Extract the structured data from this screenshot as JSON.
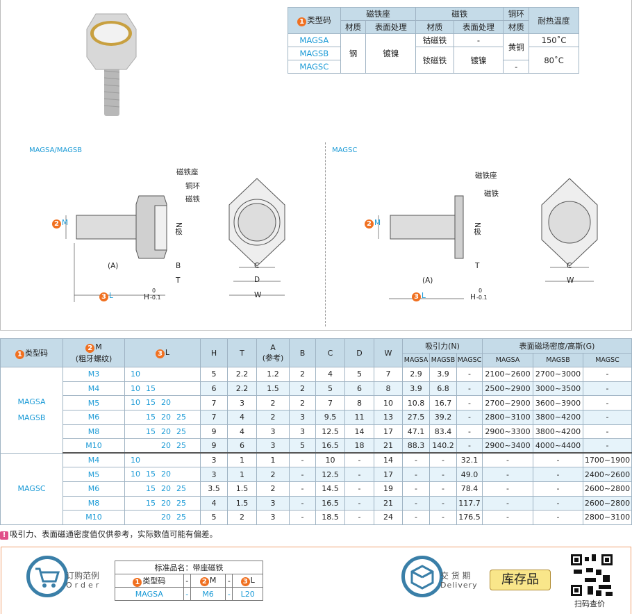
{
  "spec_table": {
    "header": {
      "type_code": "类型码",
      "type_num": "1",
      "seat": "磁铁座",
      "magnet": "磁铁",
      "ring": "铜环",
      "heat": "耐热温度",
      "material": "材质",
      "surface": "表面处理"
    },
    "rows": [
      {
        "code": "MAGSA",
        "magnet_material": "钴磁铁",
        "magnet_surface": "-",
        "heat": "150˚C"
      },
      {
        "code": "MAGSB",
        "magnet_material": "钕磁铁",
        "magnet_surface": "镀镍",
        "heat": "80˚C"
      },
      {
        "code": "MAGSC",
        "ring_material": "-"
      }
    ],
    "seat_material": "钢",
    "seat_surface": "镀镍",
    "ring_material_ab": "黄铜"
  },
  "diagram": {
    "left_title": "MAGSA/MAGSB",
    "right_title": "MAGSC",
    "labels": {
      "seat": "磁铁座",
      "ring": "铜环",
      "magnet": "磁铁",
      "pole": "N极",
      "M": "M",
      "L": "L",
      "A": "(A)",
      "B": "B",
      "T": "T",
      "H": "H",
      "tol_upper": "0",
      "tol_lower": "-0.1",
      "C": "C",
      "D": "D",
      "W": "W",
      "num2": "2",
      "num3": "3"
    }
  },
  "main_table": {
    "headers": {
      "type_code": "类型码",
      "M": "M",
      "M_sub": "(粗牙螺纹)",
      "L": "L",
      "H": "H",
      "T": "T",
      "A": "A",
      "A_sub": "(参考)",
      "B": "B",
      "C": "C",
      "D": "D",
      "W": "W",
      "force": "吸引力(N)",
      "density": "表面磁场密度/高斯(G)",
      "sub": [
        "MAGSA",
        "MAGSB",
        "MAGSC",
        "MAGSA",
        "MAGSB",
        "MAGSC"
      ]
    },
    "groups": [
      {
        "types": [
          "MAGSA",
          "MAGSB"
        ],
        "rows": [
          {
            "M": "M3",
            "L": [
              "10"
            ],
            "H": "5",
            "T": "2.2",
            "A": "1.2",
            "B": "2",
            "C": "4",
            "D": "5",
            "W": "7",
            "fA": "2.9",
            "fB": "3.9",
            "fC": "-",
            "gA": "2100~2600",
            "gB": "2700~3000",
            "gC": "-"
          },
          {
            "M": "M4",
            "L": [
              "10",
              "15"
            ],
            "H": "6",
            "T": "2.2",
            "A": "1.5",
            "B": "2",
            "C": "5",
            "D": "6",
            "W": "8",
            "fA": "3.9",
            "fB": "6.8",
            "fC": "-",
            "gA": "2500~2900",
            "gB": "3000~3500",
            "gC": "-"
          },
          {
            "M": "M5",
            "L": [
              "10",
              "15",
              "20"
            ],
            "H": "7",
            "T": "3",
            "A": "2",
            "B": "2",
            "C": "7",
            "D": "8",
            "W": "10",
            "fA": "10.8",
            "fB": "16.7",
            "fC": "-",
            "gA": "2700~2900",
            "gB": "3600~3900",
            "gC": "-"
          },
          {
            "M": "M6",
            "L": [
              "15",
              "20",
              "25"
            ],
            "H": "7",
            "T": "4",
            "A": "2",
            "B": "3",
            "C": "9.5",
            "D": "11",
            "W": "13",
            "fA": "27.5",
            "fB": "39.2",
            "fC": "-",
            "gA": "2800~3100",
            "gB": "3800~4200",
            "gC": "-"
          },
          {
            "M": "M8",
            "L": [
              "15",
              "20",
              "25"
            ],
            "H": "9",
            "T": "4",
            "A": "3",
            "B": "3",
            "C": "12.5",
            "D": "14",
            "W": "17",
            "fA": "47.1",
            "fB": "83.4",
            "fC": "-",
            "gA": "2900~3300",
            "gB": "3800~4200",
            "gC": "-"
          },
          {
            "M": "M10",
            "L": [
              "20",
              "25"
            ],
            "H": "9",
            "T": "6",
            "A": "3",
            "B": "5",
            "C": "16.5",
            "D": "18",
            "W": "21",
            "fA": "88.3",
            "fB": "140.2",
            "fC": "-",
            "gA": "2900~3400",
            "gB": "4000~4400",
            "gC": "-"
          }
        ]
      },
      {
        "types": [
          "MAGSC"
        ],
        "rows": [
          {
            "M": "M4",
            "L": [
              "10"
            ],
            "H": "3",
            "T": "1",
            "A": "1",
            "B": "-",
            "C": "10",
            "D": "-",
            "W": "14",
            "fA": "-",
            "fB": "-",
            "fC": "32.1",
            "gA": "-",
            "gB": "-",
            "gC": "1700~1900"
          },
          {
            "M": "M5",
            "L": [
              "10",
              "15",
              "20"
            ],
            "H": "3",
            "T": "1",
            "A": "2",
            "B": "-",
            "C": "12.5",
            "D": "-",
            "W": "17",
            "fA": "-",
            "fB": "-",
            "fC": "49.0",
            "gA": "-",
            "gB": "-",
            "gC": "2400~2600"
          },
          {
            "M": "M6",
            "L": [
              "15",
              "20",
              "25"
            ],
            "H": "3.5",
            "T": "1.5",
            "A": "2",
            "B": "-",
            "C": "14.5",
            "D": "-",
            "W": "19",
            "fA": "-",
            "fB": "-",
            "fC": "78.4",
            "gA": "-",
            "gB": "-",
            "gC": "2600~2800"
          },
          {
            "M": "M8",
            "L": [
              "15",
              "20",
              "25"
            ],
            "H": "4",
            "T": "1.5",
            "A": "3",
            "B": "-",
            "C": "16.5",
            "D": "-",
            "W": "21",
            "fA": "-",
            "fB": "-",
            "fC": "117.7",
            "gA": "-",
            "gB": "-",
            "gC": "2600~2800"
          },
          {
            "M": "M10",
            "L": [
              "20",
              "25"
            ],
            "H": "5",
            "T": "2",
            "A": "3",
            "B": "-",
            "C": "18.5",
            "D": "-",
            "W": "24",
            "fA": "-",
            "fB": "-",
            "fC": "176.5",
            "gA": "-",
            "gB": "-",
            "gC": "2800~3100"
          }
        ]
      }
    ]
  },
  "note": {
    "icon": "!",
    "text": "吸引力、表面磁通密度值仅供参考，实际数值可能有偏差。"
  },
  "order": {
    "title_cn": "订购范例",
    "title_en": "Order",
    "table_title": "标准品名：带座磁铁",
    "cols": [
      "类型码",
      "-",
      "M",
      "-",
      "L"
    ],
    "example": [
      "MAGSA",
      "-",
      "M6",
      "-",
      "L20"
    ],
    "delivery_cn": "交 货 期",
    "delivery_en": "Delivery",
    "stock": "库存品",
    "qr_label": "扫码查价"
  },
  "colors": {
    "accent_blue": "#1a9ad6",
    "header_bg": "#c5dbe8",
    "badge_orange": "#f07020",
    "stock_bg": "#f9e68a"
  }
}
